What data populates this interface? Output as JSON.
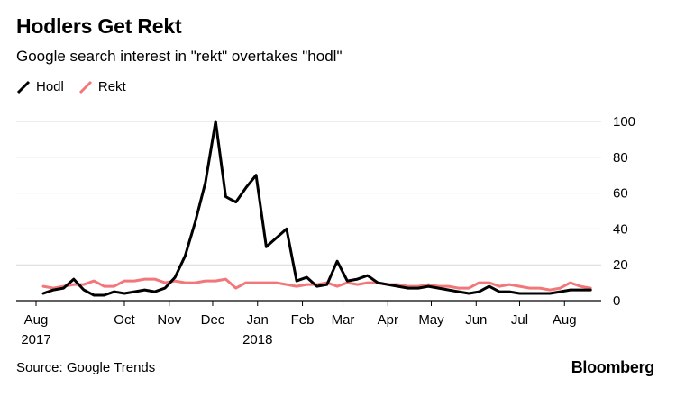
{
  "header": {
    "title": "Hodlers Get Rekt",
    "subtitle": "Google search interest in \"rekt\" overtakes \"hodl\""
  },
  "footer": {
    "source": "Source: Google Trends",
    "brand": "Bloomberg"
  },
  "chart_data": {
    "type": "line",
    "title": "Hodlers Get Rekt",
    "subtitle": "Google search interest in \"rekt\" overtakes \"hodl\"",
    "xlabel": "",
    "ylabel": "",
    "ylim": [
      0,
      100
    ],
    "yticks": [
      0,
      20,
      40,
      60,
      80,
      100
    ],
    "y_axis_side": "right",
    "grid": "horizontal",
    "legend_position": "top-left",
    "xticks": [
      {
        "label": "Aug",
        "sublabel": "2017",
        "x": "2017-08-01"
      },
      {
        "label": "Oct",
        "sublabel": "",
        "x": "2017-10-01"
      },
      {
        "label": "Nov",
        "sublabel": "",
        "x": "2017-11-01"
      },
      {
        "label": "Dec",
        "sublabel": "",
        "x": "2017-12-01"
      },
      {
        "label": "Jan",
        "sublabel": "2018",
        "x": "2018-01-01"
      },
      {
        "label": "Feb",
        "sublabel": "",
        "x": "2018-02-01"
      },
      {
        "label": "Mar",
        "sublabel": "",
        "x": "2018-03-01"
      },
      {
        "label": "Apr",
        "sublabel": "",
        "x": "2018-04-01"
      },
      {
        "label": "May",
        "sublabel": "",
        "x": "2018-05-01"
      },
      {
        "label": "Jun",
        "sublabel": "",
        "x": "2018-06-01"
      },
      {
        "label": "Jul",
        "sublabel": "",
        "x": "2018-07-01"
      },
      {
        "label": "Aug",
        "sublabel": "",
        "x": "2018-08-01"
      }
    ],
    "x": [
      "2017-08-06",
      "2017-08-13",
      "2017-08-20",
      "2017-08-27",
      "2017-09-03",
      "2017-09-10",
      "2017-09-17",
      "2017-09-24",
      "2017-10-01",
      "2017-10-08",
      "2017-10-15",
      "2017-10-22",
      "2017-10-29",
      "2017-11-05",
      "2017-11-12",
      "2017-11-19",
      "2017-11-26",
      "2017-12-03",
      "2017-12-10",
      "2017-12-17",
      "2017-12-24",
      "2017-12-31",
      "2018-01-07",
      "2018-01-14",
      "2018-01-21",
      "2018-01-28",
      "2018-02-04",
      "2018-02-11",
      "2018-02-18",
      "2018-02-25",
      "2018-03-04",
      "2018-03-11",
      "2018-03-18",
      "2018-03-25",
      "2018-04-01",
      "2018-04-08",
      "2018-04-15",
      "2018-04-22",
      "2018-04-29",
      "2018-05-06",
      "2018-05-13",
      "2018-05-20",
      "2018-05-27",
      "2018-06-03",
      "2018-06-10",
      "2018-06-17",
      "2018-06-24",
      "2018-07-01",
      "2018-07-08",
      "2018-07-15",
      "2018-07-22",
      "2018-07-29",
      "2018-08-05",
      "2018-08-12",
      "2018-08-19"
    ],
    "series": [
      {
        "name": "Hodl",
        "color": "#000000",
        "values": [
          4,
          6,
          7,
          12,
          6,
          3,
          3,
          5,
          4,
          5,
          6,
          5,
          7,
          13,
          25,
          44,
          66,
          100,
          58,
          55,
          63,
          70,
          30,
          35,
          40,
          11,
          13,
          8,
          9,
          22,
          11,
          12,
          14,
          10,
          9,
          8,
          7,
          7,
          8,
          7,
          6,
          5,
          4,
          5,
          8,
          5,
          5,
          4,
          4,
          4,
          4,
          5,
          6,
          6,
          6
        ]
      },
      {
        "name": "Rekt",
        "color": "#f2777a",
        "values": [
          8,
          7,
          8,
          9,
          9,
          11,
          8,
          8,
          11,
          11,
          12,
          12,
          10,
          11,
          10,
          10,
          11,
          11,
          12,
          7,
          10,
          10,
          10,
          10,
          9,
          8,
          9,
          9,
          10,
          8,
          10,
          9,
          10,
          10,
          9,
          9,
          8,
          8,
          9,
          8,
          8,
          7,
          7,
          10,
          10,
          8,
          9,
          8,
          7,
          7,
          6,
          7,
          10,
          8,
          7
        ]
      }
    ]
  }
}
